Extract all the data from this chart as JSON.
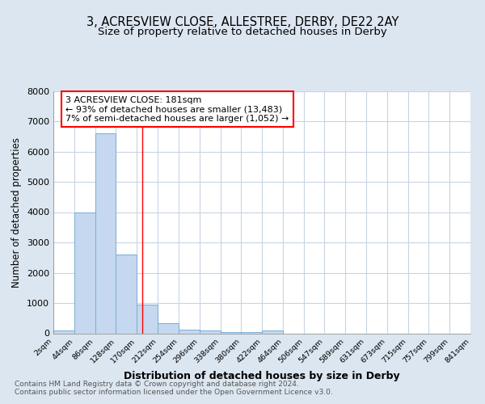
{
  "title1": "3, ACRESVIEW CLOSE, ALLESTREE, DERBY, DE22 2AY",
  "title2": "Size of property relative to detached houses in Derby",
  "xlabel": "Distribution of detached houses by size in Derby",
  "ylabel": "Number of detached properties",
  "bin_edges": [
    2,
    44,
    86,
    128,
    170,
    212,
    254,
    296,
    338,
    380,
    422,
    464,
    506,
    547,
    589,
    631,
    673,
    715,
    757,
    799,
    841
  ],
  "bar_heights": [
    100,
    4000,
    6600,
    2600,
    950,
    330,
    130,
    100,
    50,
    50,
    100,
    0,
    0,
    0,
    0,
    0,
    0,
    0,
    0,
    0
  ],
  "bar_color": "#c5d8ef",
  "bar_edge_color": "#7aadd4",
  "red_line_x": 181,
  "ylim": [
    0,
    8000
  ],
  "annotation_text_line1": "3 ACRESVIEW CLOSE: 181sqm",
  "annotation_text_line2": "← 93% of detached houses are smaller (13,483)",
  "annotation_text_line3": "7% of semi-detached houses are larger (1,052) →",
  "footnote1": "Contains HM Land Registry data © Crown copyright and database right 2024.",
  "footnote2": "Contains public sector information licensed under the Open Government Licence v3.0.",
  "bg_color": "#dce6f0",
  "plot_bg_color": "#ffffff",
  "grid_color": "#c8d4e3",
  "title1_fontsize": 10.5,
  "title2_fontsize": 9.5,
  "tick_labels": [
    "2sqm",
    "44sqm",
    "86sqm",
    "128sqm",
    "170sqm",
    "212sqm",
    "254sqm",
    "296sqm",
    "338sqm",
    "380sqm",
    "422sqm",
    "464sqm",
    "506sqm",
    "547sqm",
    "589sqm",
    "631sqm",
    "673sqm",
    "715sqm",
    "757sqm",
    "799sqm",
    "841sqm"
  ]
}
